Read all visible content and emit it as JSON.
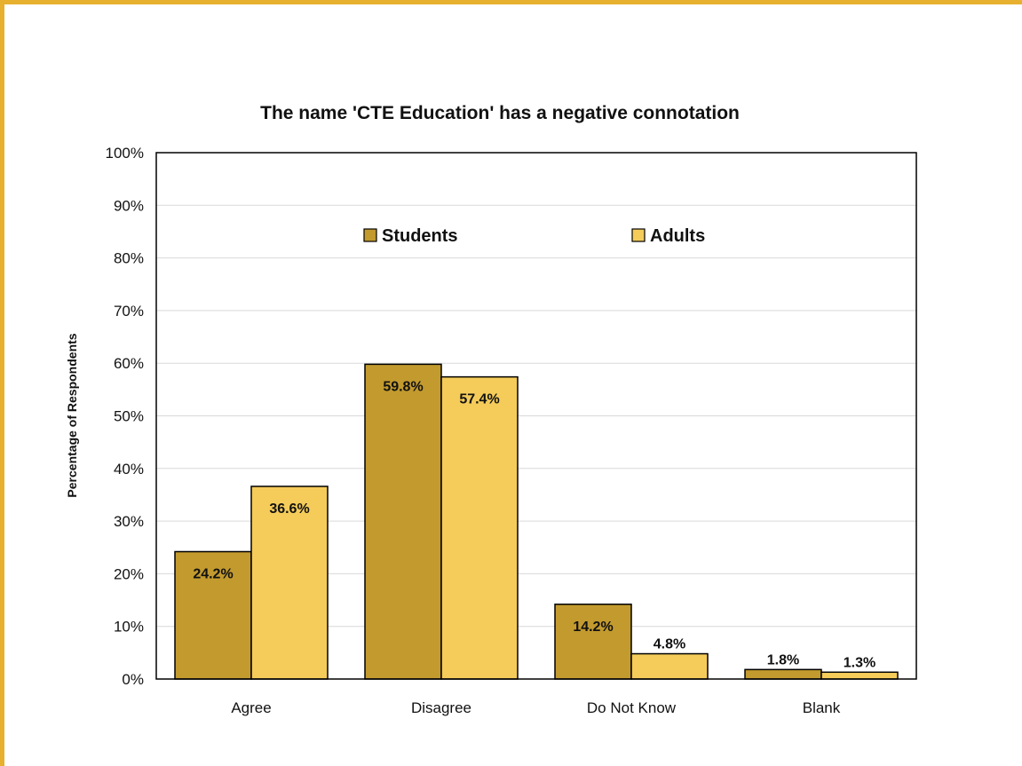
{
  "colors": {
    "frame": "#e7b12f",
    "students": "#c29a2e",
    "adults": "#f5cc5a",
    "grid": "#d9d9d9",
    "axis": "#000000"
  },
  "chart_data": {
    "type": "bar",
    "title": "The name 'CTE Education' has a negative connotation",
    "xlabel": "",
    "ylabel": "Percentage of Respondents",
    "categories": [
      "Agree",
      "Disagree",
      "Do Not Know",
      "Blank"
    ],
    "series": [
      {
        "name": "Students",
        "values": [
          24.2,
          59.8,
          14.2,
          1.8
        ],
        "labels": [
          "24.2%",
          "59.8%",
          "14.2%",
          "1.8%"
        ]
      },
      {
        "name": "Adults",
        "values": [
          36.6,
          57.4,
          4.8,
          1.3
        ],
        "labels": [
          "36.6%",
          "57.4%",
          "4.8%",
          "1.3%"
        ]
      }
    ],
    "ylim": [
      0,
      100
    ],
    "yticks": [
      "0%",
      "10%",
      "20%",
      "30%",
      "40%",
      "50%",
      "60%",
      "70%",
      "80%",
      "90%",
      "100%"
    ],
    "grid": true,
    "legend_position": "top"
  }
}
